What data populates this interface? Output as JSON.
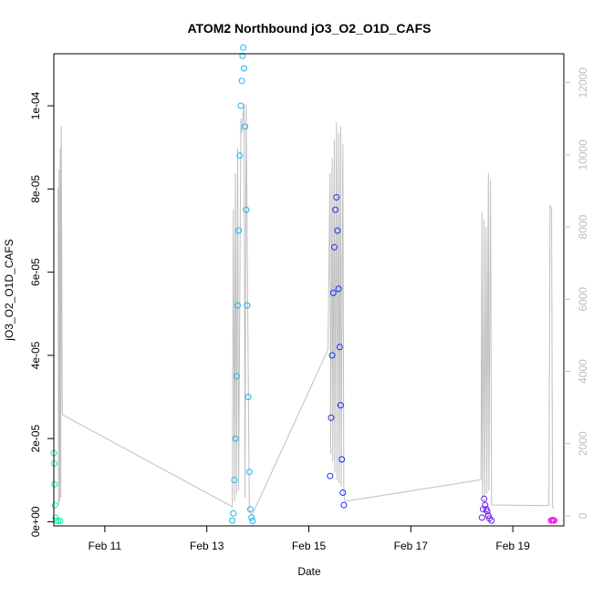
{
  "chart_data": {
    "type": "scatter",
    "title": "ATOM2 Northbound jO3_O2_O1D_CAFS",
    "xlabel": "Date",
    "ylabel": "jO3_O2_O1D_CAFS",
    "xlim": [
      "2018-02-10",
      "2018-02-20"
    ],
    "ylim": [
      -1e-06,
      0.0001125
    ],
    "y2lim": [
      -280,
      12800
    ],
    "x_ticks": [
      {
        "date": "2018-02-11",
        "label": "Feb 11"
      },
      {
        "date": "2018-02-13",
        "label": "Feb 13"
      },
      {
        "date": "2018-02-15",
        "label": "Feb 15"
      },
      {
        "date": "2018-02-17",
        "label": "Feb 17"
      },
      {
        "date": "2018-02-19",
        "label": "Feb 19"
      }
    ],
    "y_ticks": [
      {
        "value": 0,
        "label": "0e+00"
      },
      {
        "value": 2e-05,
        "label": "2e-05"
      },
      {
        "value": 4e-05,
        "label": "4e-05"
      },
      {
        "value": 6e-05,
        "label": "6e-05"
      },
      {
        "value": 8e-05,
        "label": "8e-05"
      },
      {
        "value": 0.0001,
        "label": "1e-04"
      }
    ],
    "y2_ticks": [
      {
        "value": 0,
        "label": "0"
      },
      {
        "value": 2000,
        "label": "2000"
      },
      {
        "value": 4000,
        "label": "4000"
      },
      {
        "value": 6000,
        "label": "6000"
      },
      {
        "value": 8000,
        "label": "8000"
      },
      {
        "value": 10000,
        "label": "10000"
      },
      {
        "value": 12000,
        "label": "12000"
      }
    ],
    "grid": false,
    "colors": {
      "flight1": "#19f2a0",
      "flight2": "#19b4ee",
      "flight3": "#1a2ef2",
      "flight4": "#6c19f0",
      "flight5": "#ee19ee",
      "altitude_line": "#bfbfbf",
      "axis": "#000000",
      "secondary_axis": "#bdbdbd"
    },
    "series": [
      {
        "color_key": "flight1",
        "points": [
          [
            "2018-02-10 00:00",
            1.65e-05
          ],
          [
            "2018-02-10 00:12",
            1.4e-05
          ],
          [
            "2018-02-10 00:24",
            9e-06
          ],
          [
            "2018-02-10 00:36",
            4e-06
          ],
          [
            "2018-02-10 00:48",
            1e-06
          ],
          [
            "2018-02-10 01:12",
            3e-07
          ],
          [
            "2018-02-10 02:00",
            2e-07
          ],
          [
            "2018-02-10 03:00",
            2e-07
          ]
        ]
      },
      {
        "color_key": "flight2",
        "points": [
          [
            "2018-02-13 12:00",
            3e-07
          ],
          [
            "2018-02-13 12:30",
            2e-06
          ],
          [
            "2018-02-13 13:00",
            1e-05
          ],
          [
            "2018-02-13 13:30",
            2e-05
          ],
          [
            "2018-02-13 14:00",
            3.5e-05
          ],
          [
            "2018-02-13 14:30",
            5.2e-05
          ],
          [
            "2018-02-13 15:00",
            7e-05
          ],
          [
            "2018-02-13 15:30",
            8.8e-05
          ],
          [
            "2018-02-13 16:00",
            0.0001
          ],
          [
            "2018-02-13 16:30",
            0.000106
          ],
          [
            "2018-02-13 16:50",
            0.000112
          ],
          [
            "2018-02-13 17:10",
            0.000114
          ],
          [
            "2018-02-13 17:30",
            0.000109
          ],
          [
            "2018-02-13 18:00",
            9.5e-05
          ],
          [
            "2018-02-13 18:30",
            7.5e-05
          ],
          [
            "2018-02-13 19:00",
            5.2e-05
          ],
          [
            "2018-02-13 19:30",
            3e-05
          ],
          [
            "2018-02-13 20:00",
            1.2e-05
          ],
          [
            "2018-02-13 20:30",
            3e-06
          ],
          [
            "2018-02-13 21:00",
            1e-06
          ],
          [
            "2018-02-13 21:30",
            2e-07
          ]
        ]
      },
      {
        "color_key": "flight3",
        "points": [
          [
            "2018-02-15 10:00",
            1.1e-05
          ],
          [
            "2018-02-15 10:30",
            2.5e-05
          ],
          [
            "2018-02-15 11:00",
            4e-05
          ],
          [
            "2018-02-15 11:30",
            5.5e-05
          ],
          [
            "2018-02-15 12:00",
            6.6e-05
          ],
          [
            "2018-02-15 12:30",
            7.5e-05
          ],
          [
            "2018-02-15 13:00",
            7.8e-05
          ],
          [
            "2018-02-15 13:30",
            7e-05
          ],
          [
            "2018-02-15 14:00",
            5.6e-05
          ],
          [
            "2018-02-15 14:30",
            4.2e-05
          ],
          [
            "2018-02-15 15:00",
            2.8e-05
          ],
          [
            "2018-02-15 15:30",
            1.5e-05
          ],
          [
            "2018-02-15 16:00",
            7e-06
          ],
          [
            "2018-02-15 16:30",
            4e-06
          ]
        ]
      },
      {
        "color_key": "flight4",
        "points": [
          [
            "2018-02-18 09:30",
            1e-06
          ],
          [
            "2018-02-18 10:00",
            3e-06
          ],
          [
            "2018-02-18 10:30",
            5.5e-06
          ],
          [
            "2018-02-18 11:00",
            4e-06
          ],
          [
            "2018-02-18 11:30",
            3e-06
          ],
          [
            "2018-02-18 12:00",
            2.5e-06
          ],
          [
            "2018-02-18 12:30",
            1.5e-06
          ],
          [
            "2018-02-18 13:00",
            8e-07
          ],
          [
            "2018-02-18 14:00",
            3e-07
          ]
        ]
      },
      {
        "color_key": "flight5",
        "points": [
          [
            "2018-02-19 18:00",
            3e-07
          ],
          [
            "2018-02-19 18:30",
            4e-07
          ],
          [
            "2018-02-19 19:00",
            4e-07
          ],
          [
            "2018-02-19 19:30",
            3e-07
          ]
        ]
      }
    ],
    "altitude_series": {
      "axis": "right",
      "points": [
        [
          "2018-02-10 02:00",
          9100
        ],
        [
          "2018-02-10 02:15",
          300
        ],
        [
          "2018-02-10 02:30",
          9600
        ],
        [
          "2018-02-10 02:45",
          400
        ],
        [
          "2018-02-10 03:00",
          10200
        ],
        [
          "2018-02-10 03:15",
          500
        ],
        [
          "2018-02-10 03:30",
          10800
        ],
        [
          "2018-02-10 04:00",
          2800
        ],
        [
          "2018-02-13 12:00",
          250
        ],
        [
          "2018-02-13 12:30",
          8500
        ],
        [
          "2018-02-13 13:00",
          400
        ],
        [
          "2018-02-13 13:30",
          9500
        ],
        [
          "2018-02-13 14:00",
          600
        ],
        [
          "2018-02-13 14:30",
          10200
        ],
        [
          "2018-02-13 15:00",
          700
        ],
        [
          "2018-02-13 16:00",
          11000
        ],
        [
          "2018-02-13 16:20",
          10600
        ],
        [
          "2018-02-13 17:30",
          11400
        ],
        [
          "2018-02-13 18:00",
          500
        ],
        [
          "2018-02-13 18:30",
          11400
        ],
        [
          "2018-02-13 20:00",
          100
        ],
        [
          "2018-02-13 21:30",
          50
        ],
        [
          "2018-02-15 09:00",
          4600
        ],
        [
          "2018-02-15 10:00",
          9500
        ],
        [
          "2018-02-15 10:15",
          1700
        ],
        [
          "2018-02-15 11:00",
          9900
        ],
        [
          "2018-02-15 11:15",
          1500
        ],
        [
          "2018-02-15 12:00",
          10400
        ],
        [
          "2018-02-15 12:15",
          1200
        ],
        [
          "2018-02-15 13:00",
          10900
        ],
        [
          "2018-02-15 13:15",
          1000
        ],
        [
          "2018-02-15 14:00",
          10600
        ],
        [
          "2018-02-15 14:15",
          900
        ],
        [
          "2018-02-15 15:00",
          10800
        ],
        [
          "2018-02-15 15:15",
          800
        ],
        [
          "2018-02-15 16:00",
          10300
        ],
        [
          "2018-02-15 16:30",
          600
        ],
        [
          "2018-02-15 17:00",
          400
        ],
        [
          "2018-02-18 09:00",
          1000
        ],
        [
          "2018-02-18 09:30",
          8400
        ],
        [
          "2018-02-18 09:45",
          500
        ],
        [
          "2018-02-18 10:30",
          8200
        ],
        [
          "2018-02-18 10:45",
          400
        ],
        [
          "2018-02-18 11:30",
          8000
        ],
        [
          "2018-02-18 11:45",
          600
        ],
        [
          "2018-02-18 12:30",
          9500
        ],
        [
          "2018-02-18 12:45",
          700
        ],
        [
          "2018-02-18 13:30",
          9300
        ],
        [
          "2018-02-18 14:00",
          300
        ],
        [
          "2018-02-19 17:00",
          280
        ],
        [
          "2018-02-19 17:30",
          8600
        ],
        [
          "2018-02-19 18:15",
          8500
        ],
        [
          "2018-02-19 18:40",
          250
        ],
        [
          "2018-02-19 19:30",
          200
        ]
      ]
    }
  }
}
